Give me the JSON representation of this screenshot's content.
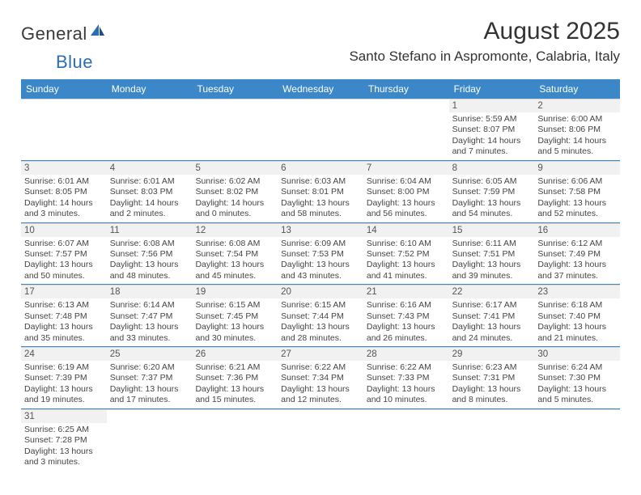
{
  "logo": {
    "general": "General",
    "blue": "Blue"
  },
  "title": "August 2025",
  "location": "Santo Stefano in Aspromonte, Calabria, Italy",
  "colors": {
    "header_bg": "#3b87c8",
    "header_text": "#ffffff",
    "daynum_bg": "#f1f1f1",
    "row_border": "#3b87c8",
    "text": "#444444"
  },
  "day_headers": [
    "Sunday",
    "Monday",
    "Tuesday",
    "Wednesday",
    "Thursday",
    "Friday",
    "Saturday"
  ],
  "weeks": [
    [
      null,
      null,
      null,
      null,
      null,
      {
        "n": "1",
        "sr": "Sunrise: 5:59 AM",
        "ss": "Sunset: 8:07 PM",
        "dl": "Daylight: 14 hours and 7 minutes."
      },
      {
        "n": "2",
        "sr": "Sunrise: 6:00 AM",
        "ss": "Sunset: 8:06 PM",
        "dl": "Daylight: 14 hours and 5 minutes."
      }
    ],
    [
      {
        "n": "3",
        "sr": "Sunrise: 6:01 AM",
        "ss": "Sunset: 8:05 PM",
        "dl": "Daylight: 14 hours and 3 minutes."
      },
      {
        "n": "4",
        "sr": "Sunrise: 6:01 AM",
        "ss": "Sunset: 8:03 PM",
        "dl": "Daylight: 14 hours and 2 minutes."
      },
      {
        "n": "5",
        "sr": "Sunrise: 6:02 AM",
        "ss": "Sunset: 8:02 PM",
        "dl": "Daylight: 14 hours and 0 minutes."
      },
      {
        "n": "6",
        "sr": "Sunrise: 6:03 AM",
        "ss": "Sunset: 8:01 PM",
        "dl": "Daylight: 13 hours and 58 minutes."
      },
      {
        "n": "7",
        "sr": "Sunrise: 6:04 AM",
        "ss": "Sunset: 8:00 PM",
        "dl": "Daylight: 13 hours and 56 minutes."
      },
      {
        "n": "8",
        "sr": "Sunrise: 6:05 AM",
        "ss": "Sunset: 7:59 PM",
        "dl": "Daylight: 13 hours and 54 minutes."
      },
      {
        "n": "9",
        "sr": "Sunrise: 6:06 AM",
        "ss": "Sunset: 7:58 PM",
        "dl": "Daylight: 13 hours and 52 minutes."
      }
    ],
    [
      {
        "n": "10",
        "sr": "Sunrise: 6:07 AM",
        "ss": "Sunset: 7:57 PM",
        "dl": "Daylight: 13 hours and 50 minutes."
      },
      {
        "n": "11",
        "sr": "Sunrise: 6:08 AM",
        "ss": "Sunset: 7:56 PM",
        "dl": "Daylight: 13 hours and 48 minutes."
      },
      {
        "n": "12",
        "sr": "Sunrise: 6:08 AM",
        "ss": "Sunset: 7:54 PM",
        "dl": "Daylight: 13 hours and 45 minutes."
      },
      {
        "n": "13",
        "sr": "Sunrise: 6:09 AM",
        "ss": "Sunset: 7:53 PM",
        "dl": "Daylight: 13 hours and 43 minutes."
      },
      {
        "n": "14",
        "sr": "Sunrise: 6:10 AM",
        "ss": "Sunset: 7:52 PM",
        "dl": "Daylight: 13 hours and 41 minutes."
      },
      {
        "n": "15",
        "sr": "Sunrise: 6:11 AM",
        "ss": "Sunset: 7:51 PM",
        "dl": "Daylight: 13 hours and 39 minutes."
      },
      {
        "n": "16",
        "sr": "Sunrise: 6:12 AM",
        "ss": "Sunset: 7:49 PM",
        "dl": "Daylight: 13 hours and 37 minutes."
      }
    ],
    [
      {
        "n": "17",
        "sr": "Sunrise: 6:13 AM",
        "ss": "Sunset: 7:48 PM",
        "dl": "Daylight: 13 hours and 35 minutes."
      },
      {
        "n": "18",
        "sr": "Sunrise: 6:14 AM",
        "ss": "Sunset: 7:47 PM",
        "dl": "Daylight: 13 hours and 33 minutes."
      },
      {
        "n": "19",
        "sr": "Sunrise: 6:15 AM",
        "ss": "Sunset: 7:45 PM",
        "dl": "Daylight: 13 hours and 30 minutes."
      },
      {
        "n": "20",
        "sr": "Sunrise: 6:15 AM",
        "ss": "Sunset: 7:44 PM",
        "dl": "Daylight: 13 hours and 28 minutes."
      },
      {
        "n": "21",
        "sr": "Sunrise: 6:16 AM",
        "ss": "Sunset: 7:43 PM",
        "dl": "Daylight: 13 hours and 26 minutes."
      },
      {
        "n": "22",
        "sr": "Sunrise: 6:17 AM",
        "ss": "Sunset: 7:41 PM",
        "dl": "Daylight: 13 hours and 24 minutes."
      },
      {
        "n": "23",
        "sr": "Sunrise: 6:18 AM",
        "ss": "Sunset: 7:40 PM",
        "dl": "Daylight: 13 hours and 21 minutes."
      }
    ],
    [
      {
        "n": "24",
        "sr": "Sunrise: 6:19 AM",
        "ss": "Sunset: 7:39 PM",
        "dl": "Daylight: 13 hours and 19 minutes."
      },
      {
        "n": "25",
        "sr": "Sunrise: 6:20 AM",
        "ss": "Sunset: 7:37 PM",
        "dl": "Daylight: 13 hours and 17 minutes."
      },
      {
        "n": "26",
        "sr": "Sunrise: 6:21 AM",
        "ss": "Sunset: 7:36 PM",
        "dl": "Daylight: 13 hours and 15 minutes."
      },
      {
        "n": "27",
        "sr": "Sunrise: 6:22 AM",
        "ss": "Sunset: 7:34 PM",
        "dl": "Daylight: 13 hours and 12 minutes."
      },
      {
        "n": "28",
        "sr": "Sunrise: 6:22 AM",
        "ss": "Sunset: 7:33 PM",
        "dl": "Daylight: 13 hours and 10 minutes."
      },
      {
        "n": "29",
        "sr": "Sunrise: 6:23 AM",
        "ss": "Sunset: 7:31 PM",
        "dl": "Daylight: 13 hours and 8 minutes."
      },
      {
        "n": "30",
        "sr": "Sunrise: 6:24 AM",
        "ss": "Sunset: 7:30 PM",
        "dl": "Daylight: 13 hours and 5 minutes."
      }
    ],
    [
      {
        "n": "31",
        "sr": "Sunrise: 6:25 AM",
        "ss": "Sunset: 7:28 PM",
        "dl": "Daylight: 13 hours and 3 minutes."
      },
      null,
      null,
      null,
      null,
      null,
      null
    ]
  ]
}
